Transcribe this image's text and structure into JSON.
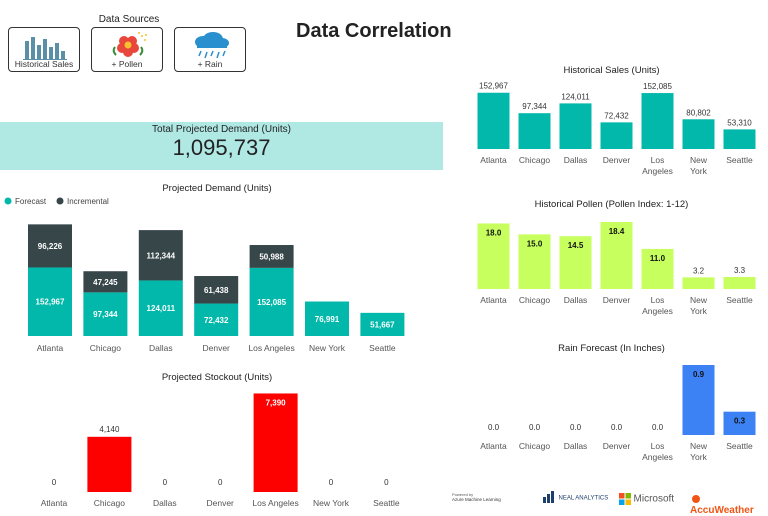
{
  "data_sources": {
    "title": "Data Sources",
    "buttons": [
      {
        "label": "Historical Sales",
        "icon": "bar-chart-icon"
      },
      {
        "label": "+ Pollen",
        "icon": "flower-icon"
      },
      {
        "label": "+ Rain",
        "icon": "rain-cloud-icon"
      }
    ]
  },
  "header": {
    "title": "Data Correlation"
  },
  "total": {
    "label": "Total Projected Demand (Units)",
    "value": "1,095,737"
  },
  "colors": {
    "teal": "#01b8aa",
    "dark": "#374649",
    "red": "#fd0000",
    "green": "#c6ff5e",
    "blue": "#3c82f5",
    "band": "#b0e8e4"
  },
  "footer": {
    "powered_by": "Powered by",
    "aml": "Azure Machine Learning",
    "neal": "NEAL ANALYTICS",
    "microsoft": "Microsoft",
    "accuweather": "AccuWeather"
  },
  "chart_data": [
    {
      "id": "projected_demand",
      "type": "bar",
      "stacked": true,
      "title": "Projected Demand (Units)",
      "legend": [
        "Forecast",
        "Incremental"
      ],
      "categories": [
        "Atlanta",
        "Chicago",
        "Dallas",
        "Denver",
        "Los Angeles",
        "New York",
        "Seattle"
      ],
      "series": [
        {
          "name": "Forecast",
          "values": [
            152967,
            97344,
            124011,
            72432,
            152085,
            76991,
            51667
          ],
          "labels": [
            "152,967",
            "97,344",
            "124,011",
            "72,432",
            "152,085",
            "76,991",
            "51,667"
          ]
        },
        {
          "name": "Incremental",
          "values": [
            96226,
            47245,
            112344,
            61438,
            50988,
            0,
            0
          ],
          "labels": [
            "96,226",
            "47,245",
            "112,344",
            "61,438",
            "50,988",
            "",
            ""
          ]
        }
      ]
    },
    {
      "id": "projected_stockout",
      "type": "bar",
      "title": "Projected Stockout (Units)",
      "categories": [
        "Atlanta",
        "Chicago",
        "Dallas",
        "Denver",
        "Los Angeles",
        "New York",
        "Seattle"
      ],
      "values": [
        0,
        4140,
        0,
        0,
        7390,
        0,
        0
      ],
      "labels": [
        "0",
        "4,140",
        "0",
        "0",
        "7,390",
        "0",
        "0"
      ]
    },
    {
      "id": "historical_sales",
      "type": "bar",
      "title": "Historical Sales (Units)",
      "categories": [
        "Atlanta",
        "Chicago",
        "Dallas",
        "Denver",
        "Los Angeles",
        "New York",
        "Seattle"
      ],
      "values": [
        152967,
        97344,
        124011,
        72432,
        152085,
        80802,
        53310
      ],
      "labels": [
        "152,967",
        "97,344",
        "124,011",
        "72,432",
        "152,085",
        "80,802",
        "53,310"
      ]
    },
    {
      "id": "historical_pollen",
      "type": "bar",
      "title": "Historical Pollen (Pollen Index: 1-12)",
      "categories": [
        "Atlanta",
        "Chicago",
        "Dallas",
        "Denver",
        "Los Angeles",
        "New York",
        "Seattle"
      ],
      "values": [
        18.0,
        15.0,
        14.5,
        18.4,
        11.0,
        3.2,
        3.3
      ],
      "labels": [
        "18.0",
        "15.0",
        "14.5",
        "18.4",
        "11.0",
        "3.2",
        "3.3"
      ]
    },
    {
      "id": "rain_forecast",
      "type": "bar",
      "title": "Rain Forecast (In Inches)",
      "categories": [
        "Atlanta",
        "Chicago",
        "Dallas",
        "Denver",
        "Los Angeles",
        "New York",
        "Seattle"
      ],
      "values": [
        0.0,
        0.0,
        0.0,
        0.0,
        0.0,
        0.9,
        0.3
      ],
      "labels": [
        "0.0",
        "0.0",
        "0.0",
        "0.0",
        "0.0",
        "0.9",
        "0.3"
      ]
    }
  ]
}
